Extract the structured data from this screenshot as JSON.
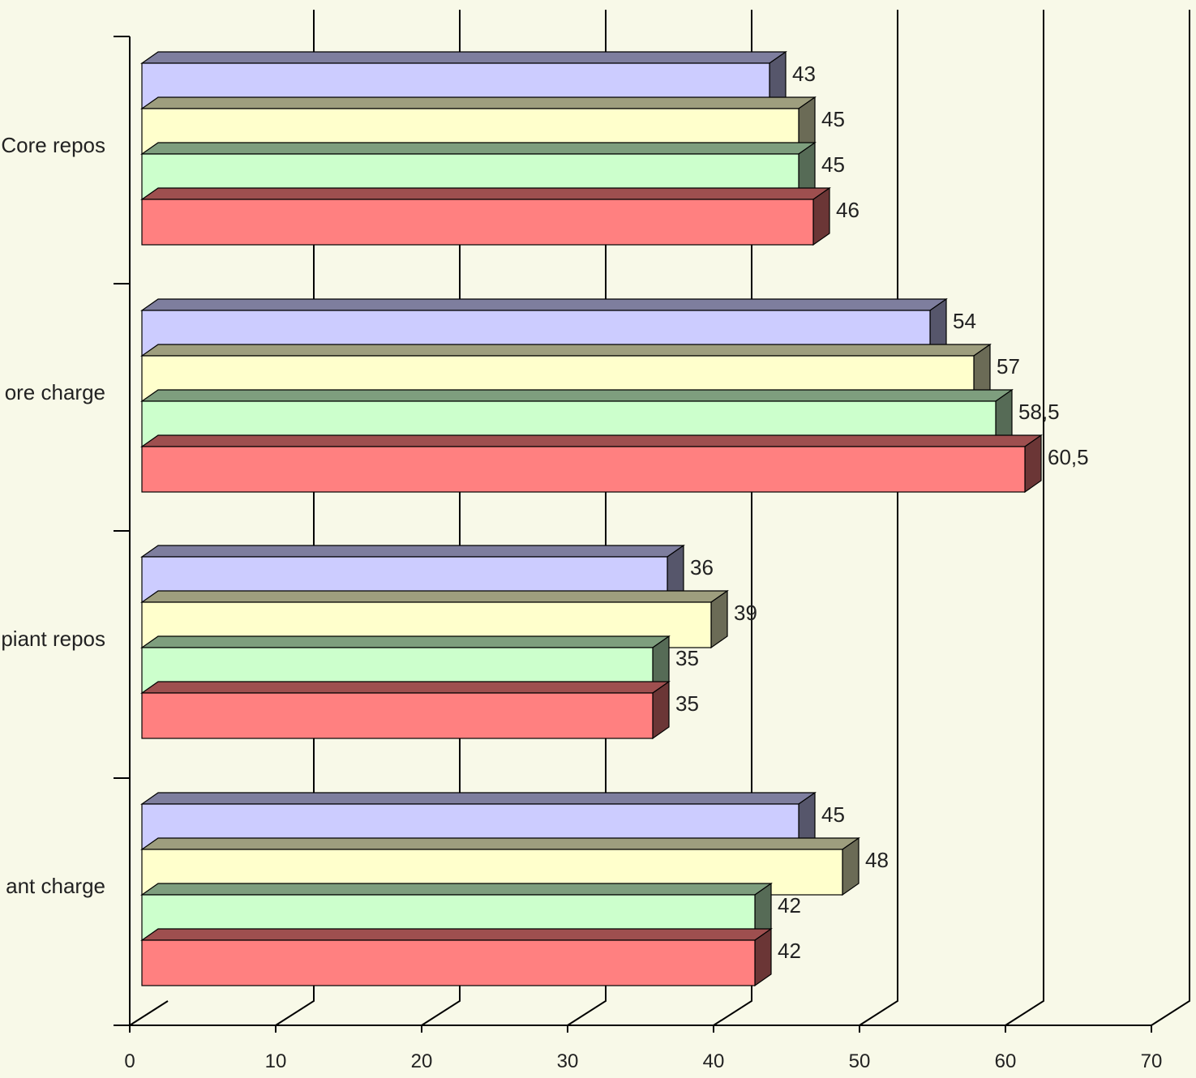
{
  "chart_data": {
    "type": "bar",
    "orientation": "horizontal",
    "three_d": true,
    "title": "",
    "xlabel": "",
    "ylabel": "",
    "xlim": [
      0,
      70
    ],
    "x_ticks": [
      "0",
      "10",
      "20",
      "30",
      "40",
      "50",
      "60",
      "70"
    ],
    "categories": [
      "Core repos",
      "ore charge",
      "piant repos",
      "ant charge"
    ],
    "grid": true,
    "legend": "none",
    "series": [
      {
        "color": "#ccccff",
        "values": [
          43,
          54,
          36,
          45
        ],
        "labels": [
          "43",
          "54",
          "36",
          "45"
        ]
      },
      {
        "color": "#ffffcc",
        "values": [
          45,
          57,
          39,
          48
        ],
        "labels": [
          "45",
          "57",
          "39",
          "48"
        ]
      },
      {
        "color": "#ccffcc",
        "values": [
          45,
          58.5,
          35,
          42
        ],
        "labels": [
          "45",
          "58,5",
          "35",
          "42"
        ]
      },
      {
        "color": "#ff8080",
        "values": [
          46,
          60.5,
          35,
          42
        ],
        "labels": [
          "46",
          "60,5",
          "35",
          "42"
        ]
      }
    ]
  }
}
